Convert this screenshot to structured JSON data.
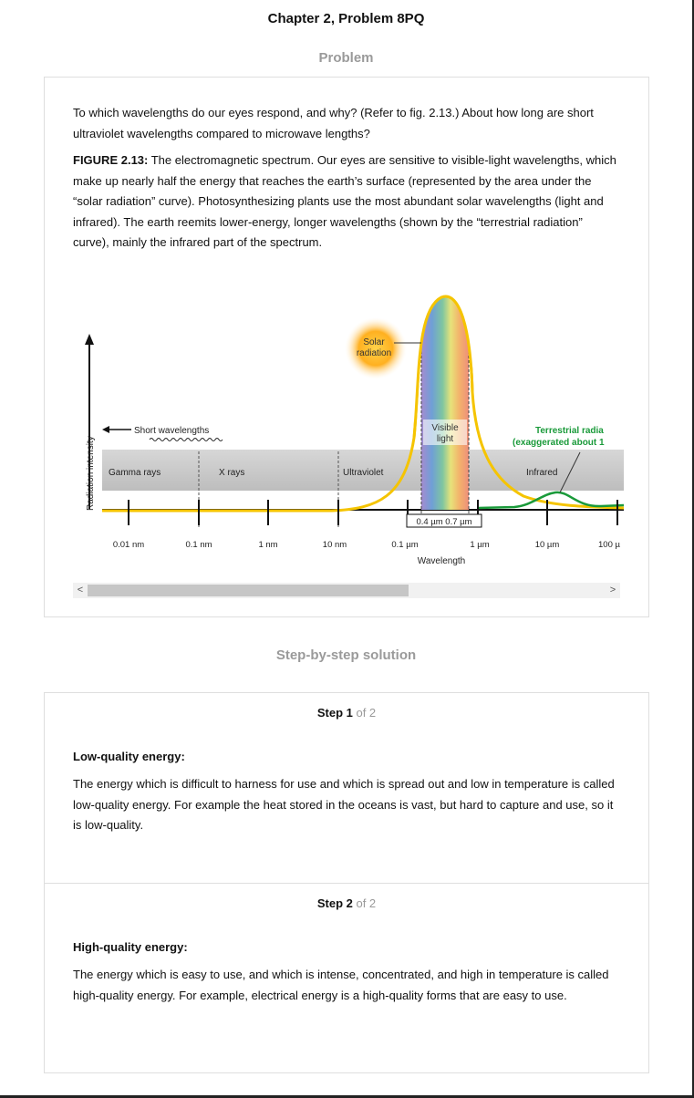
{
  "page": {
    "title": "Chapter 2, Problem 8PQ",
    "problem_label": "Problem",
    "solution_label": "Step-by-step solution"
  },
  "problem": {
    "question": "To which wavelengths do our eyes respond, and why? (Refer to fig. 2.13.) About how long are short ultraviolet wavelengths compared to microwave lengths?",
    "figure_label": "FIGURE 2.13:",
    "figure_caption": " The electromagnetic spectrum. Our eyes are sensitive to visible-light wavelengths, which make up nearly half the energy that reaches the earth’s surface (represented by the area under the “solar radiation” curve). Photosynthesizing plants use the most abundant solar wavelengths (light and infrared). The earth reemits lower-energy, longer wavelengths (shown by the “terrestrial radiation” curve), mainly the infrared part of the spectrum."
  },
  "figure": {
    "y_axis_label": "Radiation intensity",
    "x_axis_label": "Wavelength",
    "short_wavelengths": "Short wavelengths",
    "solar_label_1": "Solar",
    "solar_label_2": "radiation",
    "visible_label_1": "Visible",
    "visible_label_2": "light",
    "terrestrial_label_1": "Terrestrial radia",
    "terrestrial_label_2": "(exaggerated about 1",
    "bands": [
      "Gamma rays",
      "X rays",
      "Ultraviolet",
      "Infrared"
    ],
    "ticks": [
      "0.01 nm",
      "0.1 nm",
      "1 nm",
      "10 nm",
      "0.1 µm",
      "1 µm",
      "10 µm",
      "100 µ"
    ],
    "visible_range": "0.4 µm 0.7 µm",
    "colors": {
      "solar_curve": "#f5c400",
      "terrestrial_curve": "#1a9a3a",
      "terrestrial_label": "#1a9a3a",
      "band_bar": "#c4c4c4"
    }
  },
  "scroll": {
    "left_arrow": "<",
    "right_arrow": ">",
    "thumb_fraction": 0.62
  },
  "steps": [
    {
      "word": "Step 1",
      "total": " of 2",
      "heading": "Low-quality energy:",
      "body": "The energy which is difficult to harness for use and which is spread out and low in temperature is called low-quality energy. For example the heat stored in the oceans is vast, but hard to capture and use, so it is low-quality."
    },
    {
      "word": "Step 2",
      "total": " of 2",
      "heading": "High-quality energy:",
      "body": "The energy which is easy to use, and which is intense, concentrated, and high in temperature is called high-quality energy. For example, electrical energy is a high-quality forms that are easy to use."
    }
  ]
}
